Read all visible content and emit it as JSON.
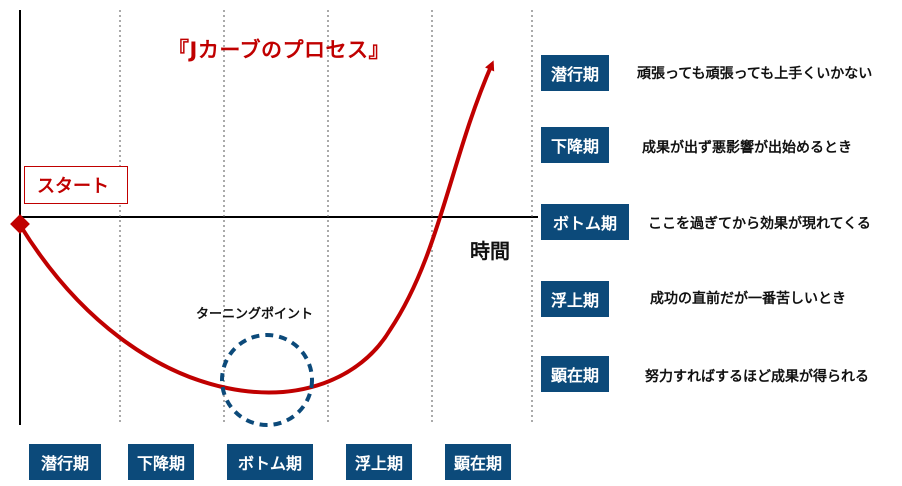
{
  "title": "『Jカーブのプロセス』",
  "start_label": "スタート",
  "time_axis_label": "時間",
  "turning_point_label": "ターニングポイント",
  "colors": {
    "curve": "#c00000",
    "badge": "#0c4a7a",
    "turning_circle": "#0c4a7a",
    "axis": "#000000",
    "grid": "#555555"
  },
  "bottom_phases": [
    "潜行期",
    "下降期",
    "ボトム期",
    "浮上期",
    "顕在期"
  ],
  "legend": [
    {
      "phase": "潜行期",
      "description": "頑張っても頑張っても上手くいかない"
    },
    {
      "phase": "下降期",
      "description": "成果が出ず悪影響が出始めるとき"
    },
    {
      "phase": "ボトム期",
      "description": "ここを過ぎてから効果が現れてくる"
    },
    {
      "phase": "浮上期",
      "description": "成功の直前だが一番苦しいとき"
    },
    {
      "phase": "顕在期",
      "description": "努力すればするほど成果が得られる"
    }
  ]
}
